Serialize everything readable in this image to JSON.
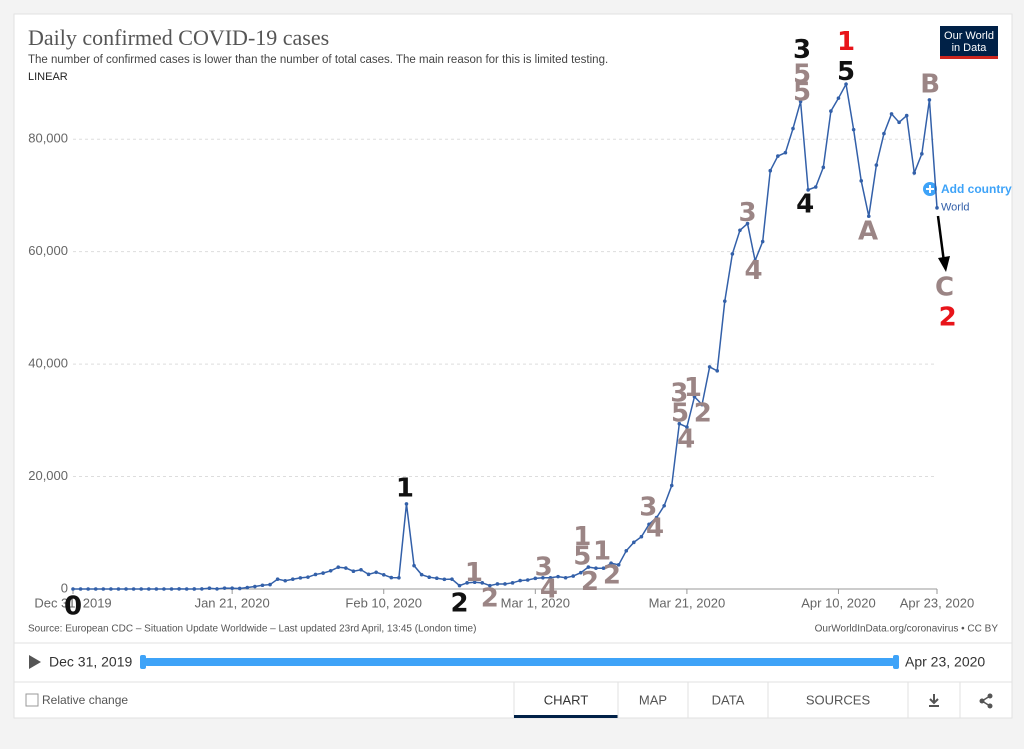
{
  "chart_data": {
    "type": "line",
    "title": "Daily confirmed COVID-19 cases",
    "subtitle": "The number of confirmed cases is lower than the number of total cases. The main reason for this is limited testing.",
    "scale": "LINEAR",
    "source": "Source: European CDC – Situation Update Worldwide – Last updated 23rd April, 13:45 (London time)",
    "credit": "OurWorldInData.org/coronavirus • CC BY",
    "add_country": "Add country",
    "xlim": [
      0,
      114
    ],
    "xticks": [
      {
        "value": 0,
        "label": "Dec 31, 2019"
      },
      {
        "value": 21,
        "label": "Jan 21, 2020"
      },
      {
        "value": 41,
        "label": "Feb 10, 2020"
      },
      {
        "value": 61,
        "label": "Mar 1, 2020"
      },
      {
        "value": 81,
        "label": "Mar 21, 2020"
      },
      {
        "value": 101,
        "label": "Apr 10, 2020"
      },
      {
        "value": 114,
        "label": "Apr 23, 2020"
      }
    ],
    "ylim": [
      0,
      90000
    ],
    "yticks": [
      0,
      {
        "value": 20000,
        "label": "20,000"
      },
      {
        "value": 40000,
        "label": "40,000"
      },
      {
        "value": 60000,
        "label": "60,000"
      },
      {
        "value": 80000,
        "label": "80,000"
      }
    ],
    "grid": true,
    "series": [
      {
        "name": "World",
        "color": "#3360a9",
        "values": [
          0,
          0,
          0,
          0,
          0,
          0,
          0,
          0,
          0,
          0,
          0,
          0,
          0,
          0,
          17,
          0,
          4,
          17,
          136,
          19,
          151,
          140,
          97,
          259,
          441,
          665,
          787,
          1753,
          1466,
          1740,
          1980,
          2102,
          2590,
          2829,
          3237,
          3872,
          3727,
          3160,
          3418,
          2607,
          2974,
          2525,
          2032,
          2000,
          15141,
          4156,
          2549,
          2099,
          1918,
          1722,
          1752,
          600,
          1100,
          1200,
          1100,
          600,
          900,
          900,
          1100,
          1500,
          1600,
          1900,
          2000,
          2000,
          2200,
          2000,
          2300,
          2900,
          3900,
          3700,
          3700,
          4600,
          4300,
          6800,
          8300,
          9300,
          11500,
          12700,
          14800,
          18400,
          29400,
          28800,
          34200,
          32800,
          39500,
          38800,
          51200,
          59600,
          63800,
          65000,
          58400,
          61800,
          74400,
          77000,
          77600,
          81900,
          86700,
          71000,
          71500,
          75000,
          85000,
          87300,
          89800,
          81700,
          72600,
          66300,
          75400,
          81000,
          84500,
          83000,
          84200,
          74000,
          77400,
          87000,
          67800
        ]
      }
    ],
    "annotations": [
      {
        "text": "0",
        "x": 0,
        "y": -3200,
        "color": "#111111"
      },
      {
        "text": "1",
        "x": 43.8,
        "y": 17800,
        "color": "#111111"
      },
      {
        "text": "2",
        "x": 51,
        "y": -2700,
        "color": "#111111"
      },
      {
        "text": "1",
        "x": 52.9,
        "y": 2800,
        "color": "#9b8585"
      },
      {
        "text": "2",
        "x": 55,
        "y": -1800,
        "color": "#9b8585"
      },
      {
        "text": "3",
        "x": 62.1,
        "y": 3700,
        "color": "#9b8585"
      },
      {
        "text": "4",
        "x": 62.8,
        "y": -200,
        "color": "#9b8585"
      },
      {
        "text": "1",
        "x": 67.2,
        "y": 9200,
        "color": "#9b8585"
      },
      {
        "text": "5",
        "x": 67.2,
        "y": 5700,
        "color": "#9b8585"
      },
      {
        "text": "2",
        "x": 68.2,
        "y": 1200,
        "color": "#9b8585"
      },
      {
        "text": "1",
        "x": 69.8,
        "y": 6600,
        "color": "#9b8585"
      },
      {
        "text": "2",
        "x": 71.1,
        "y": 2300,
        "color": "#9b8585"
      },
      {
        "text": "3",
        "x": 75.9,
        "y": 14400,
        "color": "#9b8585"
      },
      {
        "text": "4",
        "x": 76.8,
        "y": 10700,
        "color": "#9b8585"
      },
      {
        "text": "3",
        "x": 80,
        "y": 34700,
        "color": "#9b8585"
      },
      {
        "text": "5",
        "x": 80.1,
        "y": 31100,
        "color": "#9b8585"
      },
      {
        "text": "4",
        "x": 80.9,
        "y": 26500,
        "color": "#9b8585"
      },
      {
        "text": "1",
        "x": 81.8,
        "y": 35700,
        "color": "#9b8585"
      },
      {
        "text": "2",
        "x": 83.1,
        "y": 31100,
        "color": "#9b8585"
      },
      {
        "text": "3",
        "x": 89,
        "y": 66800,
        "color": "#9b8585"
      },
      {
        "text": "4",
        "x": 89.8,
        "y": 56500,
        "color": "#9b8585"
      },
      {
        "text": "3",
        "x": 96.2,
        "y": 95800,
        "color": "#111111"
      },
      {
        "text": "5",
        "x": 96.2,
        "y": 91400,
        "color": "#9b8585"
      },
      {
        "text": "5",
        "x": 96.2,
        "y": 88200,
        "color": "#9b8585"
      },
      {
        "text": "4",
        "x": 96.6,
        "y": 68300,
        "color": "#111111"
      },
      {
        "text": "1",
        "x": 102,
        "y": 97200,
        "color": "#e8141a"
      },
      {
        "text": "5",
        "x": 102,
        "y": 91900,
        "color": "#111111"
      },
      {
        "text": "A",
        "x": 104.9,
        "y": 63500,
        "color": "#9b8585"
      },
      {
        "text": "B",
        "x": 113.1,
        "y": 89600,
        "color": "#9b8585"
      },
      {
        "text": "C",
        "x": 115,
        "y": 53500,
        "color": "#9b8585"
      },
      {
        "text": "2",
        "x": 115.4,
        "y": 48200,
        "color": "#e8141a"
      }
    ]
  },
  "logo": [
    "Our World",
    "in Data"
  ],
  "timeline": {
    "start": "Dec 31, 2019",
    "end": "Apr 23, 2020"
  },
  "controls": {
    "checkbox": "Relative change",
    "tabs": [
      "CHART",
      "MAP",
      "DATA",
      "SOURCES"
    ]
  }
}
